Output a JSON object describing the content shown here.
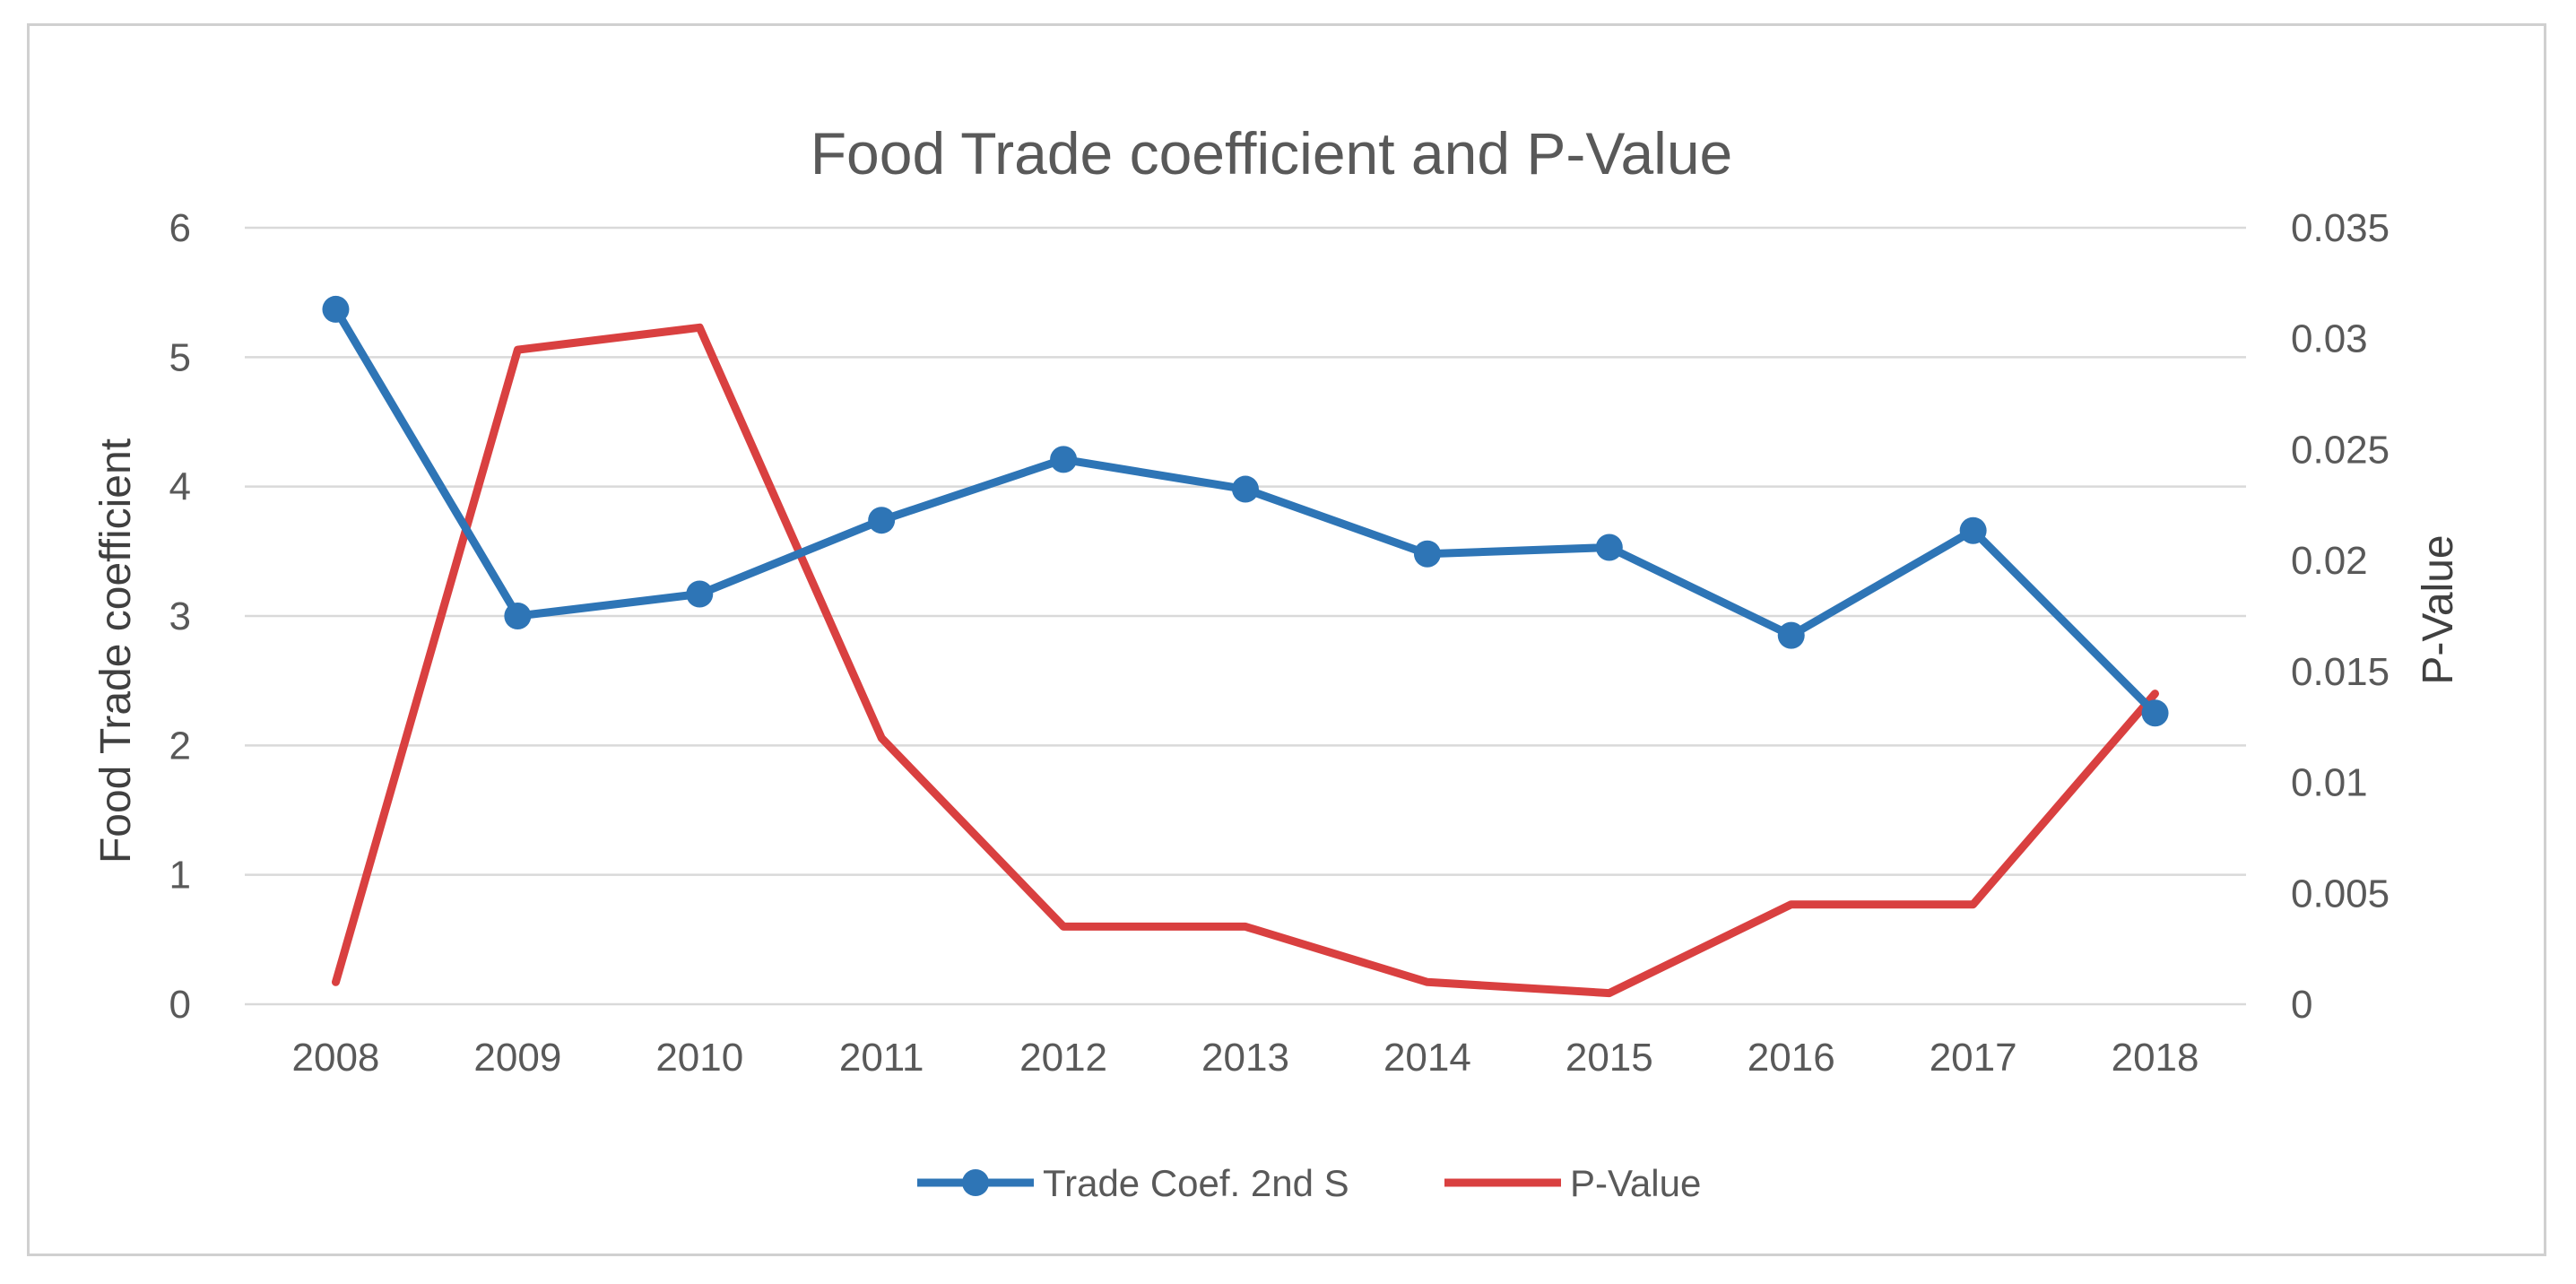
{
  "chart_data": {
    "type": "line",
    "title": "Food Trade coefficient and P-Value",
    "xlabel": "",
    "ylabel": "Food Trade coefficient",
    "y2label": "P-Value",
    "categories": [
      "2008",
      "2009",
      "2010",
      "2011",
      "2012",
      "2013",
      "2014",
      "2015",
      "2016",
      "2017",
      "2018"
    ],
    "ylim": [
      0,
      6
    ],
    "yticks": [
      "0",
      "1",
      "2",
      "3",
      "4",
      "5",
      "6"
    ],
    "y2lim": [
      0,
      0.035
    ],
    "y2ticks": [
      "0",
      "0.005",
      "0.01",
      "0.015",
      "0.02",
      "0.025",
      "0.03",
      "0.035"
    ],
    "grid": true,
    "legend_position": "bottom",
    "series": [
      {
        "name": "Trade Coef. 2nd S",
        "axis": "left",
        "color": "#2E75B6",
        "marker": "circle",
        "values": [
          5.37,
          3.0,
          3.17,
          3.74,
          4.21,
          3.98,
          3.48,
          3.53,
          2.85,
          3.66,
          2.25
        ]
      },
      {
        "name": "P-Value",
        "axis": "right",
        "color": "#D94040",
        "marker": "none",
        "values": [
          0.001,
          0.0295,
          0.0305,
          0.012,
          0.0035,
          0.0035,
          0.001,
          0.0005,
          0.0045,
          0.0045,
          0.014
        ]
      }
    ]
  }
}
